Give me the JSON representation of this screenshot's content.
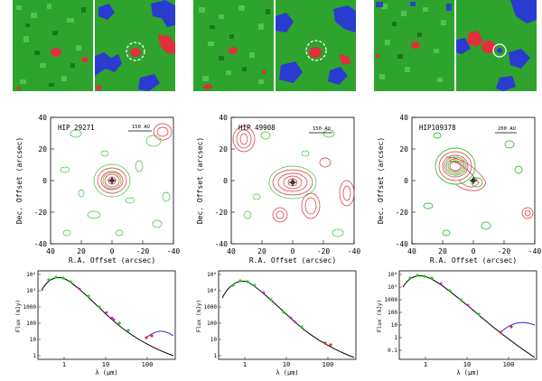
{
  "panels": [
    {
      "star": "HIP 29271",
      "scalebar": "150 AU",
      "contour_yticks": [
        "40",
        "20",
        "0",
        "-20",
        "-40"
      ],
      "contour_xticks": [
        "40",
        "20",
        "0",
        "-20",
        "-40"
      ],
      "contour_ylabel": "Dec. Offset (arcsec)",
      "contour_xlabel": "R.A. Offset (arcsec)",
      "sed_yticks": [
        "10⁶",
        "10⁴",
        "1000",
        "100",
        "10",
        "1"
      ],
      "sed_xticks": [
        "1",
        "10",
        "100"
      ],
      "sed_ylabel": "Flux (mJy)",
      "sed_xlabel": "λ (μm)"
    },
    {
      "star": "HIP 49908",
      "scalebar": "150 AU",
      "contour_yticks": [
        "40",
        "20",
        "0",
        "-20",
        "-40"
      ],
      "contour_xticks": [
        "40",
        "20",
        "0",
        "-20",
        "-40"
      ],
      "contour_ylabel": "Dec. Offset (arcsec)",
      "contour_xlabel": "R.A. Offset (arcsec)",
      "sed_yticks": [
        "10⁶",
        "10⁴",
        "1000",
        "100",
        "10",
        "1"
      ],
      "sed_xticks": [
        "1",
        "10",
        "100"
      ],
      "sed_ylabel": "Flux (mJy)",
      "sed_xlabel": "λ (μm)"
    },
    {
      "star": "HIP109378",
      "scalebar": "200 AU",
      "contour_yticks": [
        "40",
        "20",
        "0",
        "-20",
        "-40"
      ],
      "contour_xticks": [
        "40",
        "20",
        "0",
        "-20",
        "-40"
      ],
      "contour_ylabel": "Dec. Offset (arcsec)",
      "contour_xlabel": "R.A. Offset (arcsec)",
      "sed_yticks": [
        "10⁶",
        "10⁴",
        "1000",
        "100",
        "10",
        "1",
        "0.1"
      ],
      "sed_xticks": [
        "1",
        "10",
        "100"
      ],
      "sed_ylabel": "Flux (mJy)",
      "sed_xlabel": "λ (μm)"
    }
  ],
  "colors": {
    "image_bg": "#2ea32e",
    "image_blue": "#2a3bd0",
    "image_red": "#e0303a",
    "contour_red": "#d83030",
    "contour_green": "#38c238",
    "model_black": "#000000",
    "excess_blue": "#2a2ad8",
    "phot_green": "#22cc22",
    "phot_magenta": "#cc22cc"
  }
}
